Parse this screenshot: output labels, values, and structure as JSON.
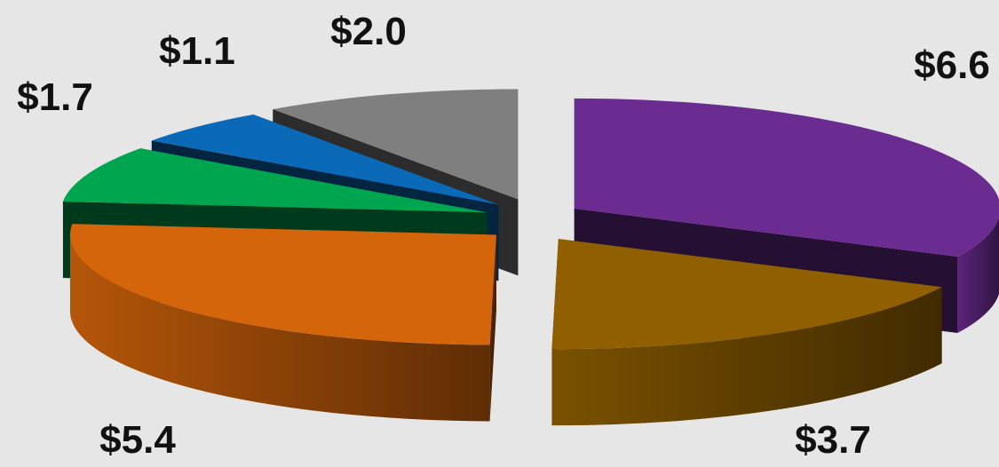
{
  "chart_data": {
    "type": "pie",
    "title": "",
    "legend": "none",
    "style": "3d-exploded",
    "slices": [
      {
        "label": "$6.6",
        "value": 6.6,
        "color": "#6b2c91"
      },
      {
        "label": "$3.7",
        "value": 3.7,
        "color": "#8f5f00"
      },
      {
        "label": "$5.4",
        "value": 5.4,
        "color": "#d4650a"
      },
      {
        "label": "$1.7",
        "value": 1.7,
        "color": "#00a54f"
      },
      {
        "label": "$1.1",
        "value": 1.1,
        "color": "#0a6ab8"
      },
      {
        "label": "$2.0",
        "value": 2.0,
        "color": "#7f7f7f"
      }
    ]
  }
}
